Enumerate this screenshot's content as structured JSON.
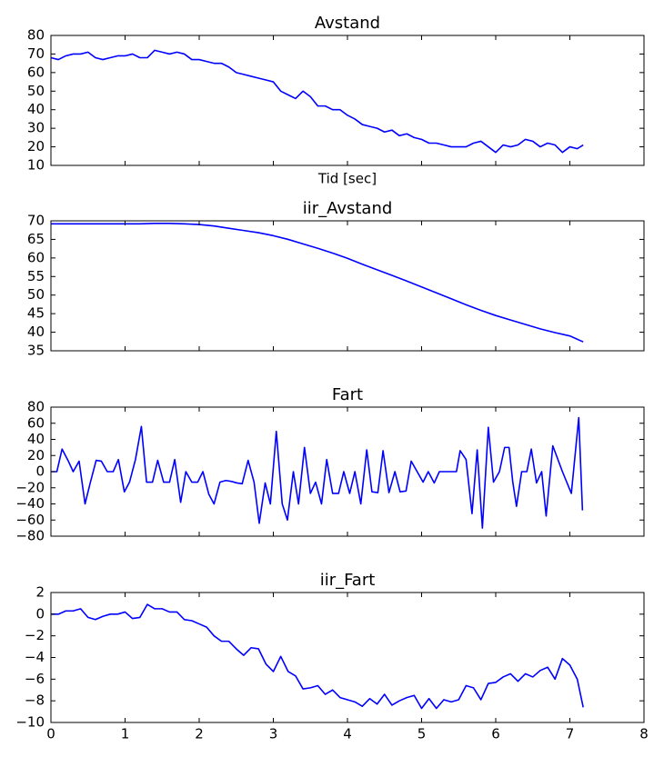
{
  "chart_data": [
    {
      "type": "line",
      "title": "Avstand",
      "xlabel": "Tid [sec]",
      "show_xticklabels": false,
      "x": [
        0,
        0.1,
        0.2,
        0.3,
        0.4,
        0.5,
        0.6,
        0.7,
        0.8,
        0.9,
        1.0,
        1.1,
        1.2,
        1.3,
        1.4,
        1.5,
        1.6,
        1.7,
        1.8,
        1.9,
        2.0,
        2.1,
        2.2,
        2.3,
        2.4,
        2.5,
        2.6,
        2.7,
        2.8,
        2.9,
        3.0,
        3.1,
        3.2,
        3.3,
        3.4,
        3.5,
        3.6,
        3.7,
        3.8,
        3.9,
        4.0,
        4.1,
        4.2,
        4.3,
        4.4,
        4.5,
        4.6,
        4.7,
        4.8,
        4.9,
        5.0,
        5.1,
        5.2,
        5.3,
        5.4,
        5.5,
        5.6,
        5.7,
        5.8,
        5.9,
        6.0,
        6.1,
        6.2,
        6.3,
        6.4,
        6.5,
        6.6,
        6.7,
        6.8,
        6.9,
        7.0,
        7.1,
        7.18
      ],
      "series": [
        {
          "color": "#0000ff",
          "values": [
            68,
            67,
            69,
            70,
            70,
            71,
            68,
            67,
            68,
            69,
            69,
            70,
            68,
            68,
            72,
            71,
            70,
            71,
            70,
            67,
            67,
            66,
            65,
            65,
            63,
            60,
            59,
            58,
            57,
            56,
            55,
            50,
            48,
            46,
            50,
            47,
            42,
            42,
            40,
            40,
            37,
            35,
            32,
            31,
            30,
            28,
            29,
            26,
            27,
            25,
            24,
            22,
            22,
            21,
            20,
            20,
            20,
            22,
            23,
            20,
            17,
            21,
            20,
            21,
            24,
            23,
            20,
            22,
            21,
            17,
            20,
            19,
            21
          ]
        }
      ],
      "xlim": [
        0,
        8
      ],
      "xticks": [
        0,
        1,
        2,
        3,
        4,
        5,
        6,
        7,
        8
      ],
      "ylim": [
        10,
        80
      ],
      "yticks": [
        10,
        20,
        30,
        40,
        50,
        60,
        70,
        80
      ]
    },
    {
      "type": "line",
      "title": "iir_Avstand",
      "show_xticklabels": false,
      "x": [
        0,
        0.2,
        0.4,
        0.6,
        0.8,
        1.0,
        1.2,
        1.4,
        1.6,
        1.8,
        2.0,
        2.2,
        2.4,
        2.6,
        2.8,
        3.0,
        3.2,
        3.4,
        3.6,
        3.8,
        4.0,
        4.2,
        4.4,
        4.6,
        4.8,
        5.0,
        5.2,
        5.4,
        5.6,
        5.8,
        6.0,
        6.2,
        6.4,
        6.6,
        6.8,
        7.0,
        7.18
      ],
      "series": [
        {
          "color": "#0000ff",
          "values": [
            69.2,
            69.2,
            69.2,
            69.2,
            69.2,
            69.2,
            69.2,
            69.3,
            69.3,
            69.2,
            69.0,
            68.6,
            68.0,
            67.4,
            66.8,
            66.0,
            65.0,
            63.8,
            62.6,
            61.3,
            59.9,
            58.3,
            56.8,
            55.3,
            53.8,
            52.2,
            50.6,
            49.0,
            47.4,
            45.9,
            44.5,
            43.3,
            42.1,
            40.9,
            39.9,
            39.0,
            37.4
          ]
        }
      ],
      "xlim": [
        0,
        8
      ],
      "xticks": [
        0,
        1,
        2,
        3,
        4,
        5,
        6,
        7,
        8
      ],
      "ylim": [
        35,
        70
      ],
      "yticks": [
        35,
        40,
        45,
        50,
        55,
        60,
        65,
        70
      ]
    },
    {
      "type": "line",
      "title": "Fart",
      "show_xticklabels": false,
      "x": [
        0,
        0.08,
        0.15,
        0.23,
        0.3,
        0.38,
        0.46,
        0.53,
        0.61,
        0.68,
        0.76,
        0.84,
        0.91,
        0.99,
        1.06,
        1.14,
        1.22,
        1.29,
        1.37,
        1.44,
        1.52,
        1.6,
        1.67,
        1.75,
        1.82,
        1.9,
        1.98,
        2.05,
        2.13,
        2.2,
        2.28,
        2.36,
        2.43,
        2.51,
        2.58,
        2.66,
        2.74,
        2.81,
        2.89,
        2.96,
        3.04,
        3.12,
        3.19,
        3.27,
        3.34,
        3.42,
        3.5,
        3.57,
        3.65,
        3.72,
        3.8,
        3.88,
        3.95,
        4.03,
        4.1,
        4.18,
        4.26,
        4.33,
        4.41,
        4.48,
        4.56,
        4.64,
        4.71,
        4.79,
        4.86,
        4.94,
        5.02,
        5.09,
        5.17,
        5.24,
        5.32,
        5.4,
        5.47,
        5.52,
        5.6,
        5.68,
        5.75,
        5.82,
        5.9,
        5.97,
        6.05,
        6.12,
        6.18,
        6.23,
        6.28,
        6.35,
        6.42,
        6.48,
        6.55,
        6.62,
        6.68,
        6.77,
        6.9,
        7.02,
        7.12,
        7.17
      ],
      "series": [
        {
          "color": "#0000ff",
          "values": [
            0,
            0,
            28,
            14,
            0,
            13,
            -40,
            -14,
            14,
            13,
            0,
            0,
            15,
            -25,
            -13,
            15,
            56,
            -13,
            -13,
            14,
            -13,
            -13,
            15,
            -38,
            0,
            -13,
            -13,
            0,
            -28,
            -40,
            -13,
            -11,
            -12,
            -14,
            -15,
            14,
            -13,
            -64,
            -14,
            -40,
            50,
            -40,
            -60,
            0,
            -40,
            30,
            -27,
            -13,
            -40,
            15,
            -27,
            -27,
            0,
            -27,
            0,
            -40,
            27,
            -25,
            -26,
            26,
            -26,
            0,
            -25,
            -24,
            13,
            0,
            -13,
            0,
            -14,
            0,
            0,
            0,
            0,
            26,
            15,
            -52,
            27,
            -70,
            55,
            -13,
            0,
            30,
            30,
            -13,
            -43,
            0,
            0,
            28,
            -14,
            0,
            -55,
            32,
            0,
            -27,
            67,
            -48
          ]
        }
      ],
      "xlim": [
        0,
        8
      ],
      "xticks": [
        0,
        1,
        2,
        3,
        4,
        5,
        6,
        7,
        8
      ],
      "ylim": [
        -80,
        80
      ],
      "yticks": [
        {
          "value": -80,
          "label": "−80"
        },
        {
          "value": -60,
          "label": "−60"
        },
        {
          "value": -40,
          "label": "−40"
        },
        {
          "value": -20,
          "label": "−20"
        },
        0,
        20,
        40,
        60,
        80
      ]
    },
    {
      "type": "line",
      "title": "iir_Fart",
      "show_xticklabels": true,
      "x": [
        0,
        0.1,
        0.2,
        0.3,
        0.4,
        0.5,
        0.6,
        0.7,
        0.8,
        0.9,
        1.0,
        1.1,
        1.2,
        1.3,
        1.4,
        1.5,
        1.6,
        1.7,
        1.8,
        1.9,
        2.0,
        2.1,
        2.2,
        2.3,
        2.4,
        2.5,
        2.6,
        2.7,
        2.8,
        2.9,
        3.0,
        3.1,
        3.2,
        3.3,
        3.4,
        3.5,
        3.6,
        3.7,
        3.8,
        3.9,
        4.0,
        4.1,
        4.2,
        4.3,
        4.4,
        4.5,
        4.6,
        4.7,
        4.8,
        4.9,
        5.0,
        5.1,
        5.2,
        5.3,
        5.4,
        5.5,
        5.6,
        5.7,
        5.8,
        5.9,
        6.0,
        6.1,
        6.2,
        6.3,
        6.4,
        6.5,
        6.6,
        6.7,
        6.8,
        6.9,
        7.0,
        7.1,
        7.18
      ],
      "series": [
        {
          "color": "#0000ff",
          "values": [
            0,
            0,
            0.3,
            0.3,
            0.5,
            -0.3,
            -0.5,
            -0.2,
            0,
            0,
            0.2,
            -0.4,
            -0.3,
            0.9,
            0.5,
            0.5,
            0.2,
            0.2,
            -0.5,
            -0.6,
            -0.9,
            -1.2,
            -2.0,
            -2.5,
            -2.5,
            -3.2,
            -3.8,
            -3.1,
            -3.2,
            -4.6,
            -5.3,
            -3.9,
            -5.3,
            -5.7,
            -6.9,
            -6.8,
            -6.6,
            -7.4,
            -7.0,
            -7.7,
            -7.9,
            -8.1,
            -8.5,
            -7.8,
            -8.3,
            -7.4,
            -8.4,
            -8.0,
            -7.7,
            -7.5,
            -8.7,
            -7.8,
            -8.7,
            -7.9,
            -8.1,
            -7.9,
            -6.6,
            -6.8,
            -7.9,
            -6.4,
            -6.3,
            -5.8,
            -5.5,
            -6.2,
            -5.5,
            -5.8,
            -5.2,
            -4.9,
            -6.0,
            -4.1,
            -4.7,
            -6.0,
            -8.6
          ]
        }
      ],
      "xlim": [
        0,
        8
      ],
      "xticks": [
        0,
        1,
        2,
        3,
        4,
        5,
        6,
        7,
        8
      ],
      "ylim": [
        -10,
        2
      ],
      "yticks": [
        {
          "value": -10,
          "label": "−10"
        },
        {
          "value": -8,
          "label": "−8"
        },
        {
          "value": -6,
          "label": "−6"
        },
        {
          "value": -4,
          "label": "−4"
        },
        {
          "value": -2,
          "label": "−2"
        },
        0,
        2
      ]
    }
  ]
}
